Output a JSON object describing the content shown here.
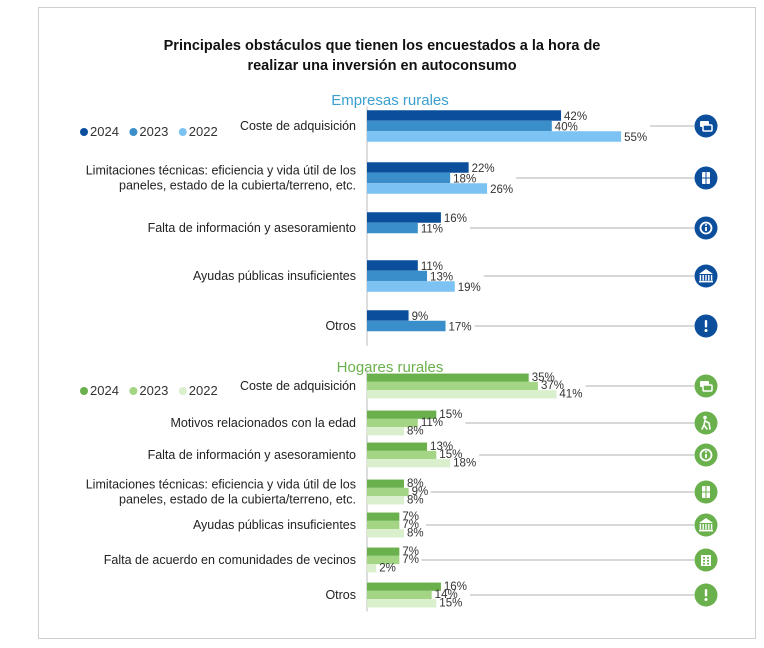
{
  "title_line1": "Principales obstáculos que tienen los encuestados a la hora de",
  "title_line2": "realizar una inversión en autoconsumo",
  "chart_data": [
    {
      "type": "bar",
      "orientation": "horizontal",
      "title": "Empresas rurales",
      "title_color": "#3a9fcf",
      "legend": [
        "2024",
        "2023",
        "2022"
      ],
      "legend_placement": "top-left",
      "icon_color": "#0b4f9c",
      "colors": [
        "#0b4f9c",
        "#3a8fca",
        "#7cc2f2"
      ],
      "categories": [
        {
          "lines": [
            "Coste de adquisición"
          ],
          "values": [
            42,
            40,
            55
          ],
          "icon": "money-icon"
        },
        {
          "lines": [
            "Limitaciones técnicas: eficiencia y vida útil de los",
            "paneles, estado de la cubierta/terreno, etc."
          ],
          "values": [
            22,
            18,
            26
          ],
          "icon": "solar-panel-icon"
        },
        {
          "lines": [
            "Falta de información y asesoramiento"
          ],
          "values": [
            16,
            11,
            null
          ],
          "icon": "info-icon"
        },
        {
          "lines": [
            "Ayudas públicas insuficientes"
          ],
          "values": [
            11,
            13,
            19
          ],
          "icon": "bank-icon"
        },
        {
          "lines": [
            "Otros"
          ],
          "values": [
            9,
            17,
            null
          ],
          "icon": "exclamation-icon"
        }
      ]
    },
    {
      "type": "bar",
      "orientation": "horizontal",
      "title": "Hogares rurales",
      "title_color": "#6ab04c",
      "legend": [
        "2024",
        "2023",
        "2022"
      ],
      "legend_placement": "top-left",
      "icon_color": "#6ab04c",
      "colors": [
        "#6ab04c",
        "#a3d585",
        "#daf0cc"
      ],
      "categories": [
        {
          "lines": [
            "Coste de adquisición"
          ],
          "values": [
            35,
            37,
            41
          ],
          "icon": "money-icon"
        },
        {
          "lines": [
            "Motivos relacionados con la edad"
          ],
          "values": [
            15,
            11,
            8
          ],
          "icon": "elderly-person-icon"
        },
        {
          "lines": [
            "Falta de información y asesoramiento"
          ],
          "values": [
            13,
            15,
            18
          ],
          "icon": "info-icon"
        },
        {
          "lines": [
            "Limitaciones técnicas: eficiencia y vida útil de los",
            "paneles, estado de la cubierta/terreno, etc."
          ],
          "values": [
            8,
            9,
            8
          ],
          "icon": "solar-panel-icon"
        },
        {
          "lines": [
            "Ayudas públicas insuficientes"
          ],
          "values": [
            7,
            7,
            8
          ],
          "icon": "bank-icon"
        },
        {
          "lines": [
            "Falta de acuerdo en comunidades de vecinos"
          ],
          "values": [
            7,
            7,
            2
          ],
          "icon": "building-icon"
        },
        {
          "lines": [
            "Otros"
          ],
          "values": [
            16,
            14,
            15
          ],
          "icon": "exclamation-icon"
        }
      ]
    }
  ]
}
